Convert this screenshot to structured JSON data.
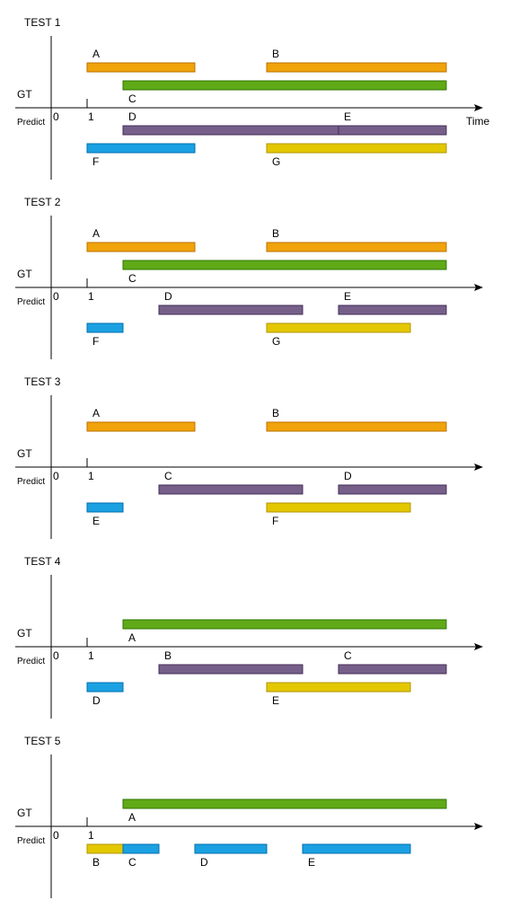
{
  "colors": {
    "orange": "#f0a30a",
    "orange_stroke": "#bd7000",
    "green": "#60a917",
    "green_stroke": "#2d7600",
    "purple": "#76608a",
    "purple_stroke": "#432d57",
    "blue": "#1ba1e2",
    "blue_stroke": "#006eaf",
    "yellow": "#e3c800",
    "yellow_stroke": "#b09500",
    "axis": "#000000"
  },
  "labels": {
    "gt": "GT",
    "predict": "Predict",
    "origin": "0",
    "tick": "1",
    "time": "Time"
  },
  "tests": [
    {
      "title": "TEST 1",
      "show_time": true,
      "gt": [
        {
          "label": "A",
          "start": 1,
          "end": 4,
          "row": "top",
          "color": "orange"
        },
        {
          "label": "B",
          "start": 6,
          "end": 11,
          "row": "top",
          "color": "orange"
        },
        {
          "label": "C",
          "start": 2,
          "end": 11,
          "row": "bottom",
          "color": "green"
        }
      ],
      "predict": [
        {
          "label": "D",
          "start": 2,
          "end": 8,
          "row": "top",
          "color": "purple"
        },
        {
          "label": "E",
          "start": 8,
          "end": 11,
          "row": "top",
          "color": "purple"
        },
        {
          "label": "F",
          "start": 1,
          "end": 4,
          "row": "bottom",
          "color": "blue"
        },
        {
          "label": "G",
          "start": 6,
          "end": 11,
          "row": "bottom",
          "color": "yellow"
        }
      ]
    },
    {
      "title": "TEST 2",
      "show_time": false,
      "gt": [
        {
          "label": "A",
          "start": 1,
          "end": 4,
          "row": "top",
          "color": "orange"
        },
        {
          "label": "B",
          "start": 6,
          "end": 11,
          "row": "top",
          "color": "orange"
        },
        {
          "label": "C",
          "start": 2,
          "end": 11,
          "row": "bottom",
          "color": "green"
        }
      ],
      "predict": [
        {
          "label": "D",
          "start": 3,
          "end": 7,
          "row": "top",
          "color": "purple"
        },
        {
          "label": "E",
          "start": 8,
          "end": 11,
          "row": "top",
          "color": "purple"
        },
        {
          "label": "F",
          "start": 1,
          "end": 2,
          "row": "bottom",
          "color": "blue"
        },
        {
          "label": "G",
          "start": 6,
          "end": 10,
          "row": "bottom",
          "color": "yellow"
        }
      ]
    },
    {
      "title": "TEST 3",
      "show_time": false,
      "gt": [
        {
          "label": "A",
          "start": 1,
          "end": 4,
          "row": "top",
          "color": "orange"
        },
        {
          "label": "B",
          "start": 6,
          "end": 11,
          "row": "top",
          "color": "orange"
        }
      ],
      "predict": [
        {
          "label": "C",
          "start": 3,
          "end": 7,
          "row": "top",
          "color": "purple"
        },
        {
          "label": "D",
          "start": 8,
          "end": 11,
          "row": "top",
          "color": "purple"
        },
        {
          "label": "E",
          "start": 1,
          "end": 2,
          "row": "bottom",
          "color": "blue"
        },
        {
          "label": "F",
          "start": 6,
          "end": 10,
          "row": "bottom",
          "color": "yellow"
        }
      ]
    },
    {
      "title": "TEST 4",
      "show_time": false,
      "gt": [
        {
          "label": "A",
          "start": 2,
          "end": 11,
          "row": "bottom",
          "color": "green"
        }
      ],
      "predict": [
        {
          "label": "B",
          "start": 3,
          "end": 7,
          "row": "top",
          "color": "purple"
        },
        {
          "label": "C",
          "start": 8,
          "end": 11,
          "row": "top",
          "color": "purple"
        },
        {
          "label": "D",
          "start": 1,
          "end": 2,
          "row": "bottom",
          "color": "blue"
        },
        {
          "label": "E",
          "start": 6,
          "end": 10,
          "row": "bottom",
          "color": "yellow"
        }
      ]
    },
    {
      "title": "TEST 5",
      "show_time": false,
      "gt": [
        {
          "label": "A",
          "start": 2,
          "end": 11,
          "row": "bottom",
          "color": "green"
        }
      ],
      "predict": [
        {
          "label": "B",
          "start": 1,
          "end": 2,
          "row": "top",
          "color": "yellow"
        },
        {
          "label": "C",
          "start": 2,
          "end": 3,
          "row": "top",
          "color": "blue"
        },
        {
          "label": "D",
          "start": 4,
          "end": 6,
          "row": "top",
          "color": "blue"
        },
        {
          "label": "E",
          "start": 7,
          "end": 10,
          "row": "top",
          "color": "blue"
        }
      ]
    }
  ]
}
